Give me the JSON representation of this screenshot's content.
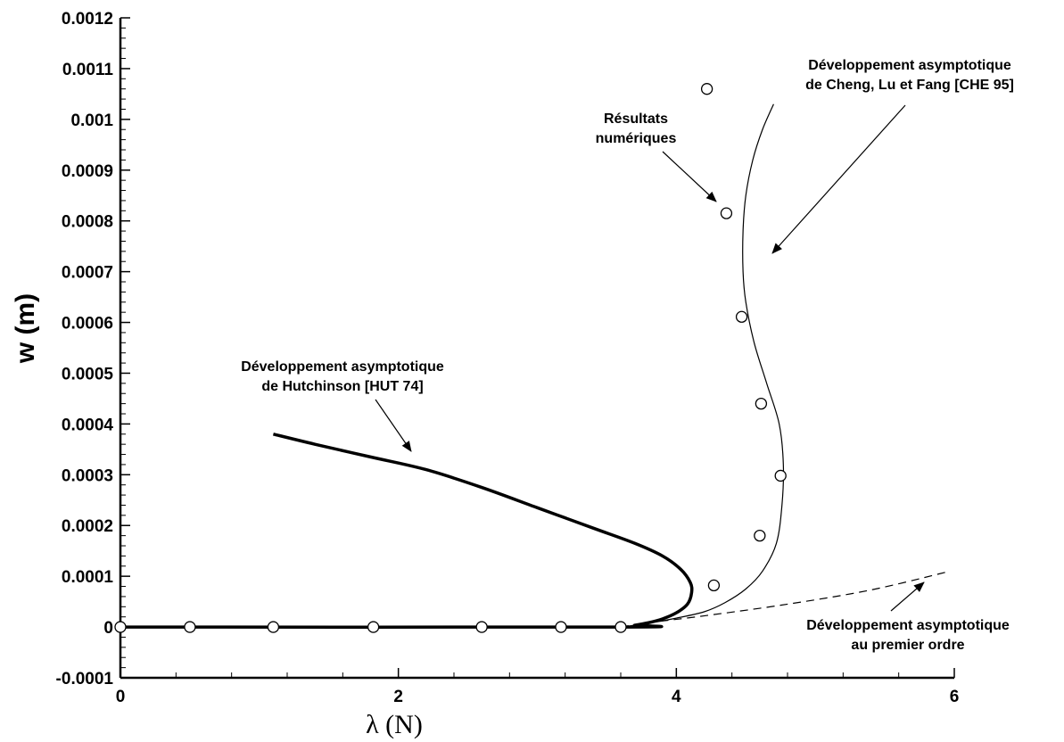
{
  "chart_data": {
    "type": "line",
    "xlabel": "λ (N)",
    "ylabel": "w (m)",
    "xlim": [
      0,
      6
    ],
    "ylim": [
      -0.0001,
      0.0012
    ],
    "xticks": [
      0,
      2,
      4,
      6
    ],
    "yticks": [
      -0.0001,
      0,
      0.0001,
      0.0002,
      0.0003,
      0.0004,
      0.0005,
      0.0006,
      0.0007,
      0.0008,
      0.0009,
      0.001,
      0.0011,
      0.0012
    ],
    "x_tick_labels": [
      "0",
      "2",
      "4",
      "6"
    ],
    "y_tick_labels": [
      "-0.0001",
      "0",
      "0.0001",
      "0.0002",
      "0.0003",
      "0.0004",
      "0.0005",
      "0.0006",
      "0.0007",
      "0.0008",
      "0.0009",
      "0.001",
      "0.0011",
      "0.0012"
    ],
    "grid": false,
    "series": [
      {
        "style": "thick-solid",
        "points": [
          [
            0,
            0
          ],
          [
            3.6,
            0
          ],
          [
            3.7,
            3.5e-06
          ],
          [
            3.8,
            8.5e-06
          ],
          [
            3.9,
            1.6e-05
          ],
          [
            4.0,
            2.8e-05
          ],
          [
            4.08,
            4.5e-05
          ],
          [
            4.11,
            6.8e-05
          ],
          [
            4.1,
            8.8e-05
          ],
          [
            4.03,
            0.000114
          ],
          [
            3.9,
            0.00014
          ],
          [
            3.7,
            0.000165
          ],
          [
            3.4,
            0.000195
          ],
          [
            3.0,
            0.000235
          ],
          [
            2.6,
            0.000275
          ],
          [
            2.2,
            0.00031
          ],
          [
            1.8,
            0.000335
          ],
          [
            1.4,
            0.00036
          ],
          [
            1.1,
            0.00038
          ]
        ]
      },
      {
        "style": "thin-solid",
        "points": [
          [
            3.6,
            0
          ],
          [
            3.8,
            7.5e-06
          ],
          [
            4.0,
            1.75e-05
          ],
          [
            4.2,
            3e-05
          ],
          [
            4.35,
            4.8e-05
          ],
          [
            4.5,
            7.5e-05
          ],
          [
            4.62,
            0.00011
          ],
          [
            4.72,
            0.000165
          ],
          [
            4.76,
            0.00024
          ],
          [
            4.77,
            0.00032
          ],
          [
            4.74,
            0.0004
          ],
          [
            4.65,
            0.00048
          ],
          [
            4.56,
            0.00056
          ],
          [
            4.5,
            0.00064
          ],
          [
            4.48,
            0.0007
          ],
          [
            4.48,
            0.00078
          ],
          [
            4.5,
            0.00085
          ],
          [
            4.55,
            0.00092
          ],
          [
            4.62,
            0.00098
          ],
          [
            4.7,
            0.00103
          ]
        ]
      },
      {
        "style": "dashed",
        "points": [
          [
            3.6,
            0
          ],
          [
            3.8,
            8.5e-06
          ],
          [
            4.2,
            2.2e-05
          ],
          [
            4.8,
            4.5e-05
          ],
          [
            5.4,
            7.3e-05
          ],
          [
            5.97,
            0.00011
          ]
        ]
      },
      {
        "style": "markers",
        "points": [
          [
            0,
            0
          ],
          [
            0.5,
            0
          ],
          [
            1.1,
            0
          ],
          [
            1.82,
            0
          ],
          [
            2.6,
            0
          ],
          [
            3.17,
            0
          ],
          [
            3.6,
            0
          ],
          [
            4.27,
            8.2e-05
          ],
          [
            4.6,
            0.00018
          ],
          [
            4.75,
            0.000298
          ],
          [
            4.61,
            0.00044
          ],
          [
            4.47,
            0.000611
          ],
          [
            4.36,
            0.000815
          ],
          [
            4.22,
            0.00106
          ]
        ]
      }
    ],
    "annotations": [
      {
        "lines": [
          "Développement asymptotique",
          "de Cheng, Lu et Fang [CHE 95]"
        ]
      },
      {
        "lines": [
          "Résultats",
          "numériques"
        ]
      },
      {
        "lines": [
          "Développement asymptotique",
          "de Hutchinson [HUT 74]"
        ]
      },
      {
        "lines": [
          "Développement asymptotique",
          "au premier ordre"
        ]
      }
    ]
  }
}
